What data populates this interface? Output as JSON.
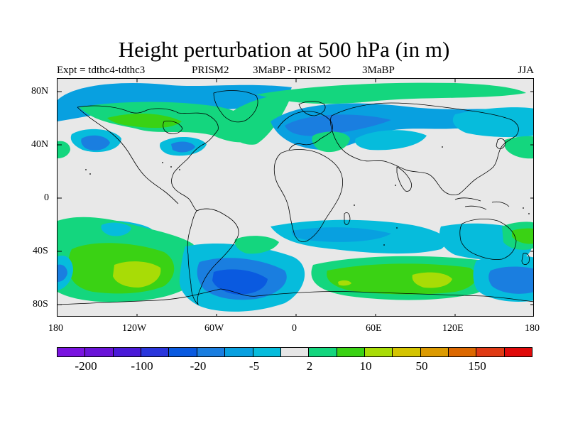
{
  "title": "Height perturbation at 500 hPa (in m)",
  "subtitle": {
    "left": "Expt = tdthc4-tdthc3",
    "center_1": "PRISM2",
    "center_2": "3MaBP - PRISM2",
    "center_3": "3MaBP",
    "right": "JJA"
  },
  "axes": {
    "x_ticks": [
      "180",
      "120W",
      "60W",
      "0",
      "60E",
      "120E",
      "180"
    ],
    "y_ticks": [
      "80N",
      "40N",
      "0",
      "40S",
      "80S"
    ]
  },
  "colorbar": {
    "labels": [
      "-200",
      "-100",
      "-20",
      "-5",
      "2",
      "10",
      "50",
      "150"
    ],
    "colors": [
      "#7a14e0",
      "#6a14d8",
      "#4a1ad8",
      "#2a36dc",
      "#0a5ae0",
      "#1a7ee0",
      "#08a0e0",
      "#06bcdc",
      "#e6e6e6",
      "#14d67e",
      "#3ad214",
      "#a8dc06",
      "#d4c400",
      "#dc9a00",
      "#dc6800",
      "#e03a14",
      "#e00a0a"
    ]
  },
  "colors": {
    "land_fill": "#e8e8e8",
    "coast_line": "#000000",
    "neutral": "#e6e6e6"
  }
}
